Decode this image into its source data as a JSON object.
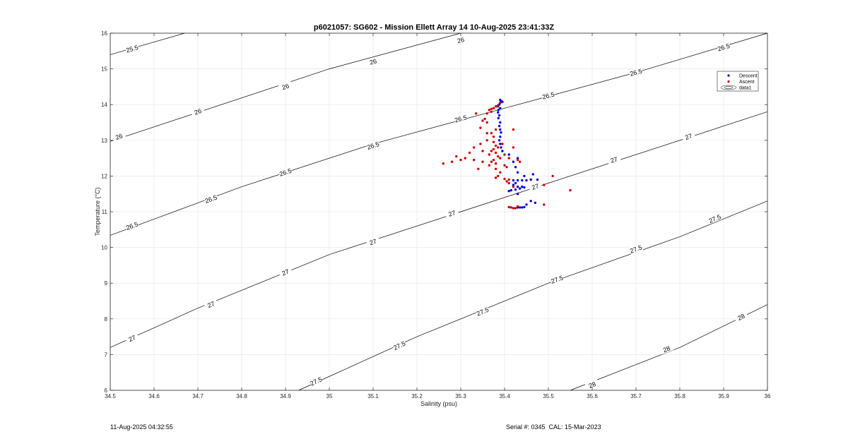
{
  "chart_data": {
    "type": "scatter",
    "title": "p6021057: SG602 - Mission Ellett Array 14 10-Aug-2025 23:41:33Z",
    "xlabel": "Salinity (psu)",
    "ylabel": "Temperature (°C)",
    "xlim": [
      34.5,
      36
    ],
    "ylim": [
      6,
      16
    ],
    "x_ticks": [
      "34.5",
      "34.6",
      "34.7",
      "34.8",
      "34.9",
      "35",
      "35.1",
      "35.2",
      "35.3",
      "35.4",
      "35.5",
      "35.6",
      "35.7",
      "35.8",
      "35.9",
      "36"
    ],
    "y_ticks": [
      "6",
      "7",
      "8",
      "9",
      "10",
      "11",
      "12",
      "13",
      "14",
      "15",
      "16"
    ],
    "grid": true,
    "legend_position": "top-right",
    "legend": [
      {
        "name": "Descent",
        "color": "#0000cc",
        "marker": "dot"
      },
      {
        "name": "Ascent",
        "color": "#cc0000",
        "marker": "dot"
      },
      {
        "name": "data1",
        "color": "#000000",
        "marker": "contour"
      }
    ],
    "density_contours": [
      {
        "level": "25.5",
        "points": [
          [
            34.5,
            15.4
          ],
          [
            34.67,
            16.0
          ]
        ],
        "labels": [
          [
            34.55,
            15.56
          ]
        ]
      },
      {
        "level": "26",
        "points": [
          [
            34.5,
            12.97
          ],
          [
            35.0,
            15.0
          ],
          [
            35.3,
            16.0
          ]
        ],
        "labels": [
          [
            34.52,
            13.1
          ],
          [
            34.7,
            13.8
          ],
          [
            34.9,
            14.5
          ],
          [
            35.1,
            15.2
          ],
          [
            35.3,
            15.8
          ]
        ]
      },
      {
        "level": "26.5",
        "points": [
          [
            34.5,
            10.34
          ],
          [
            34.8,
            11.7
          ],
          [
            35.1,
            12.9
          ],
          [
            35.4,
            13.9
          ],
          [
            35.7,
            14.9
          ],
          [
            36.0,
            16.0
          ]
        ],
        "labels": [
          [
            34.55,
            10.6
          ],
          [
            34.73,
            11.35
          ],
          [
            34.9,
            12.1
          ],
          [
            35.1,
            12.85
          ],
          [
            35.3,
            13.6
          ],
          [
            35.5,
            14.25
          ],
          [
            35.7,
            14.9
          ],
          [
            35.9,
            15.6
          ]
        ]
      },
      {
        "level": "27",
        "points": [
          [
            34.5,
            7.2
          ],
          [
            34.7,
            8.3
          ],
          [
            35.0,
            9.8
          ],
          [
            35.3,
            11.0
          ],
          [
            35.5,
            11.8
          ],
          [
            36.0,
            13.8
          ]
        ],
        "labels": [
          [
            34.55,
            7.45
          ],
          [
            34.73,
            8.4
          ],
          [
            34.9,
            9.3
          ],
          [
            35.1,
            10.15
          ],
          [
            35.28,
            10.95
          ],
          [
            35.47,
            11.7
          ],
          [
            35.65,
            12.45
          ],
          [
            35.82,
            13.1
          ]
        ]
      },
      {
        "level": "27.5",
        "points": [
          [
            34.93,
            6.0
          ],
          [
            35.2,
            7.5
          ],
          [
            35.5,
            9.0
          ],
          [
            35.8,
            10.3
          ],
          [
            36.0,
            11.3
          ]
        ],
        "labels": [
          [
            34.97,
            6.25
          ],
          [
            35.16,
            7.25
          ],
          [
            35.35,
            8.2
          ],
          [
            35.52,
            9.1
          ],
          [
            35.7,
            9.95
          ],
          [
            35.88,
            10.8
          ]
        ]
      },
      {
        "level": "28",
        "points": [
          [
            35.55,
            6.0
          ],
          [
            35.8,
            7.2
          ],
          [
            36.0,
            8.4
          ]
        ],
        "labels": [
          [
            35.6,
            6.15
          ],
          [
            35.77,
            7.15
          ],
          [
            35.94,
            8.05
          ]
        ]
      }
    ],
    "series": [
      {
        "name": "Descent",
        "color": "#0000cc",
        "points": [
          [
            35.39,
            14.13
          ],
          [
            35.392,
            14.1
          ],
          [
            35.395,
            14.08
          ],
          [
            35.39,
            14.05
          ],
          [
            35.388,
            14.0
          ],
          [
            35.385,
            13.95
          ],
          [
            35.39,
            13.9
          ],
          [
            35.386,
            13.85
          ],
          [
            35.385,
            13.78
          ],
          [
            35.388,
            13.7
          ],
          [
            35.386,
            13.62
          ],
          [
            35.39,
            13.5
          ],
          [
            35.388,
            13.4
          ],
          [
            35.39,
            13.3
          ],
          [
            35.392,
            13.22
          ],
          [
            35.39,
            13.1
          ],
          [
            35.388,
            13.0
          ],
          [
            35.39,
            12.9
          ],
          [
            35.392,
            12.8
          ],
          [
            35.395,
            12.7
          ],
          [
            35.41,
            12.6
          ],
          [
            35.43,
            12.5
          ],
          [
            35.42,
            12.4
          ],
          [
            35.425,
            12.25
          ],
          [
            35.43,
            12.1
          ],
          [
            35.445,
            12.0
          ],
          [
            35.465,
            12.05
          ],
          [
            35.475,
            11.9
          ],
          [
            35.46,
            11.9
          ],
          [
            35.45,
            11.88
          ],
          [
            35.44,
            11.88
          ],
          [
            35.43,
            11.88
          ],
          [
            35.42,
            11.88
          ],
          [
            35.425,
            11.8
          ],
          [
            35.42,
            11.75
          ],
          [
            35.43,
            11.7
          ],
          [
            35.44,
            11.7
          ],
          [
            35.445,
            11.68
          ],
          [
            35.435,
            11.65
          ],
          [
            35.425,
            11.62
          ],
          [
            35.415,
            11.6
          ],
          [
            35.41,
            11.58
          ],
          [
            35.43,
            11.5
          ],
          [
            35.46,
            11.3
          ],
          [
            35.47,
            11.25
          ],
          [
            35.45,
            11.2
          ],
          [
            35.445,
            11.13
          ],
          [
            35.44,
            11.12
          ],
          [
            35.435,
            11.12
          ],
          [
            35.43,
            11.12
          ]
        ]
      },
      {
        "name": "Ascent",
        "color": "#cc0000",
        "points": [
          [
            35.39,
            14.05
          ],
          [
            35.385,
            13.98
          ],
          [
            35.38,
            13.95
          ],
          [
            35.375,
            13.9
          ],
          [
            35.37,
            13.88
          ],
          [
            35.365,
            13.85
          ],
          [
            35.37,
            13.8
          ],
          [
            35.36,
            13.75
          ],
          [
            35.355,
            13.6
          ],
          [
            35.36,
            13.5
          ],
          [
            35.345,
            13.35
          ],
          [
            35.38,
            13.3
          ],
          [
            35.37,
            13.2
          ],
          [
            35.375,
            13.1
          ],
          [
            35.36,
            13.0
          ],
          [
            35.375,
            12.95
          ],
          [
            35.38,
            12.85
          ],
          [
            35.385,
            12.8
          ],
          [
            35.375,
            12.75
          ],
          [
            35.37,
            12.7
          ],
          [
            35.38,
            12.65
          ],
          [
            35.365,
            12.6
          ],
          [
            35.385,
            12.55
          ],
          [
            35.39,
            12.5
          ],
          [
            35.375,
            12.45
          ],
          [
            35.37,
            12.4
          ],
          [
            35.38,
            12.35
          ],
          [
            35.365,
            12.3
          ],
          [
            35.4,
            12.3
          ],
          [
            35.35,
            12.4
          ],
          [
            35.33,
            12.45
          ],
          [
            35.31,
            12.5
          ],
          [
            35.29,
            12.55
          ],
          [
            35.3,
            12.45
          ],
          [
            35.28,
            12.4
          ],
          [
            35.26,
            12.35
          ],
          [
            35.32,
            12.65
          ],
          [
            35.35,
            12.7
          ],
          [
            35.4,
            12.6
          ],
          [
            35.41,
            12.5
          ],
          [
            35.42,
            12.8
          ],
          [
            35.43,
            12.45
          ],
          [
            35.435,
            12.4
          ],
          [
            35.38,
            12.2
          ],
          [
            35.39,
            12.1
          ],
          [
            35.385,
            12.0
          ],
          [
            35.38,
            11.95
          ],
          [
            35.4,
            11.92
          ],
          [
            35.405,
            11.85
          ],
          [
            35.41,
            11.8
          ],
          [
            35.42,
            11.7
          ],
          [
            35.49,
            11.75
          ],
          [
            35.51,
            12.0
          ],
          [
            35.55,
            11.6
          ],
          [
            35.49,
            11.2
          ],
          [
            35.43,
            11.15
          ],
          [
            35.425,
            11.1
          ],
          [
            35.42,
            11.1
          ],
          [
            35.415,
            11.12
          ],
          [
            35.41,
            11.13
          ],
          [
            35.335,
            13.75
          ],
          [
            35.35,
            13.55
          ],
          [
            35.42,
            13.3
          ],
          [
            35.36,
            13.2
          ],
          [
            35.345,
            12.9
          ],
          [
            35.395,
            12.9
          ],
          [
            35.33,
            12.8
          ],
          [
            35.34,
            12.2
          ],
          [
            35.405,
            12.25
          ],
          [
            35.41,
            11.9
          ]
        ]
      }
    ]
  },
  "footer": {
    "timestamp": "11-Aug-2025 04:32:55",
    "serial_cal": "Serial #: 0345  CAL: 15-Mar-2023"
  }
}
